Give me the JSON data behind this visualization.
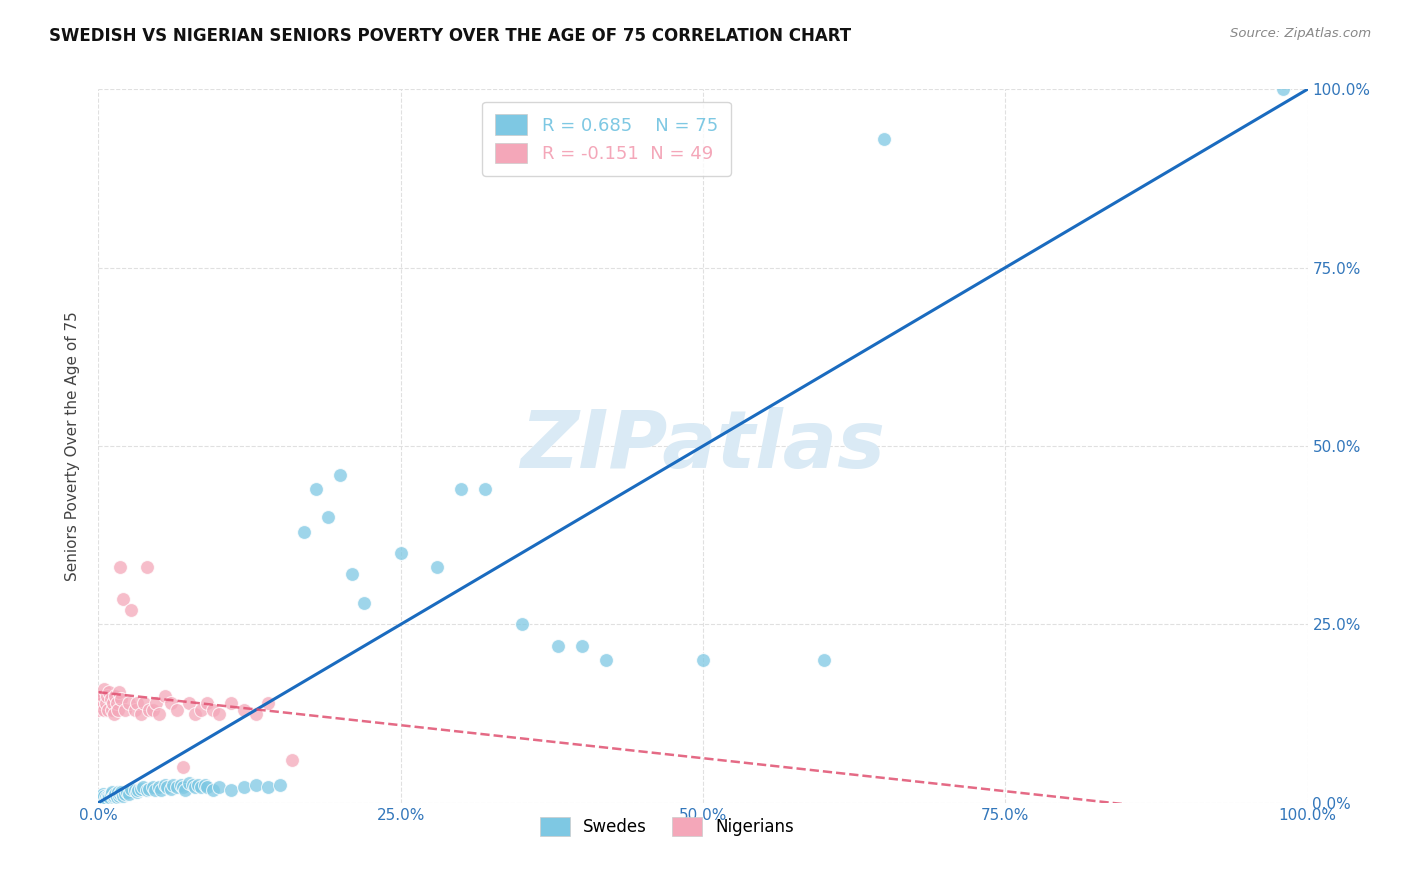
{
  "title": "SWEDISH VS NIGERIAN SENIORS POVERTY OVER THE AGE OF 75 CORRELATION CHART",
  "source": "Source: ZipAtlas.com",
  "ylabel": "Seniors Poverty Over the Age of 75",
  "bg_color": "#ffffff",
  "grid_color": "#e0e0e0",
  "r_swedish": 0.685,
  "n_swedish": 75,
  "r_nigerian": -0.151,
  "n_nigerian": 49,
  "swedish_color": "#7ec8e3",
  "nigerian_color": "#f4a7b9",
  "swedish_line_color": "#1a6bbf",
  "nigerian_line_color": "#e05070",
  "watermark": "ZIPatlas",
  "watermark_color": "#daeaf5",
  "swedish_line": [
    [
      0.0,
      0.0
    ],
    [
      1.0,
      1.0
    ]
  ],
  "nigerian_line": [
    [
      0.0,
      0.155
    ],
    [
      1.0,
      -0.03
    ]
  ],
  "swedish_dots": [
    [
      0.001,
      0.01
    ],
    [
      0.002,
      0.01
    ],
    [
      0.003,
      0.008
    ],
    [
      0.004,
      0.012
    ],
    [
      0.005,
      0.01
    ],
    [
      0.006,
      0.008
    ],
    [
      0.007,
      0.005
    ],
    [
      0.008,
      0.01
    ],
    [
      0.009,
      0.008
    ],
    [
      0.01,
      0.012
    ],
    [
      0.011,
      0.015
    ],
    [
      0.012,
      0.008
    ],
    [
      0.013,
      0.01
    ],
    [
      0.014,
      0.012
    ],
    [
      0.015,
      0.008
    ],
    [
      0.016,
      0.015
    ],
    [
      0.017,
      0.01
    ],
    [
      0.018,
      0.012
    ],
    [
      0.019,
      0.015
    ],
    [
      0.02,
      0.01
    ],
    [
      0.022,
      0.012
    ],
    [
      0.024,
      0.015
    ],
    [
      0.025,
      0.012
    ],
    [
      0.027,
      0.02
    ],
    [
      0.03,
      0.018
    ],
    [
      0.032,
      0.015
    ],
    [
      0.033,
      0.018
    ],
    [
      0.035,
      0.02
    ],
    [
      0.037,
      0.022
    ],
    [
      0.04,
      0.018
    ],
    [
      0.042,
      0.02
    ],
    [
      0.045,
      0.022
    ],
    [
      0.047,
      0.018
    ],
    [
      0.05,
      0.022
    ],
    [
      0.052,
      0.018
    ],
    [
      0.055,
      0.025
    ],
    [
      0.057,
      0.022
    ],
    [
      0.06,
      0.02
    ],
    [
      0.062,
      0.025
    ],
    [
      0.065,
      0.022
    ],
    [
      0.068,
      0.025
    ],
    [
      0.07,
      0.022
    ],
    [
      0.072,
      0.018
    ],
    [
      0.075,
      0.028
    ],
    [
      0.078,
      0.025
    ],
    [
      0.08,
      0.022
    ],
    [
      0.082,
      0.025
    ],
    [
      0.085,
      0.022
    ],
    [
      0.088,
      0.025
    ],
    [
      0.09,
      0.022
    ],
    [
      0.095,
      0.018
    ],
    [
      0.1,
      0.022
    ],
    [
      0.11,
      0.018
    ],
    [
      0.12,
      0.022
    ],
    [
      0.13,
      0.025
    ],
    [
      0.14,
      0.022
    ],
    [
      0.15,
      0.025
    ],
    [
      0.17,
      0.38
    ],
    [
      0.18,
      0.44
    ],
    [
      0.19,
      0.4
    ],
    [
      0.2,
      0.46
    ],
    [
      0.21,
      0.32
    ],
    [
      0.22,
      0.28
    ],
    [
      0.25,
      0.35
    ],
    [
      0.28,
      0.33
    ],
    [
      0.3,
      0.44
    ],
    [
      0.32,
      0.44
    ],
    [
      0.35,
      0.25
    ],
    [
      0.38,
      0.22
    ],
    [
      0.4,
      0.22
    ],
    [
      0.42,
      0.2
    ],
    [
      0.5,
      0.2
    ],
    [
      0.6,
      0.2
    ],
    [
      0.65,
      0.93
    ],
    [
      0.98,
      1.0
    ]
  ],
  "nigerian_dots": [
    [
      0.0,
      0.13
    ],
    [
      0.001,
      0.14
    ],
    [
      0.002,
      0.15
    ],
    [
      0.003,
      0.14
    ],
    [
      0.004,
      0.15
    ],
    [
      0.005,
      0.13
    ],
    [
      0.005,
      0.16
    ],
    [
      0.006,
      0.14
    ],
    [
      0.007,
      0.15
    ],
    [
      0.008,
      0.13
    ],
    [
      0.009,
      0.155
    ],
    [
      0.01,
      0.145
    ],
    [
      0.011,
      0.13
    ],
    [
      0.012,
      0.14
    ],
    [
      0.013,
      0.125
    ],
    [
      0.014,
      0.15
    ],
    [
      0.015,
      0.14
    ],
    [
      0.016,
      0.13
    ],
    [
      0.017,
      0.155
    ],
    [
      0.018,
      0.33
    ],
    [
      0.019,
      0.145
    ],
    [
      0.02,
      0.285
    ],
    [
      0.022,
      0.13
    ],
    [
      0.025,
      0.14
    ],
    [
      0.027,
      0.27
    ],
    [
      0.03,
      0.13
    ],
    [
      0.032,
      0.14
    ],
    [
      0.035,
      0.125
    ],
    [
      0.038,
      0.14
    ],
    [
      0.04,
      0.33
    ],
    [
      0.042,
      0.13
    ],
    [
      0.045,
      0.13
    ],
    [
      0.048,
      0.14
    ],
    [
      0.05,
      0.125
    ],
    [
      0.055,
      0.15
    ],
    [
      0.06,
      0.14
    ],
    [
      0.065,
      0.13
    ],
    [
      0.07,
      0.05
    ],
    [
      0.075,
      0.14
    ],
    [
      0.08,
      0.125
    ],
    [
      0.085,
      0.13
    ],
    [
      0.09,
      0.14
    ],
    [
      0.095,
      0.13
    ],
    [
      0.1,
      0.125
    ],
    [
      0.11,
      0.14
    ],
    [
      0.12,
      0.13
    ],
    [
      0.13,
      0.125
    ],
    [
      0.14,
      0.14
    ],
    [
      0.16,
      0.06
    ]
  ],
  "xlim": [
    0.0,
    1.0
  ],
  "ylim": [
    0.0,
    1.0
  ],
  "xticks": [
    0.0,
    0.25,
    0.5,
    0.75,
    1.0
  ],
  "xtick_labels": [
    "0.0%",
    "25.0%",
    "50.0%",
    "75.0%",
    "100.0%"
  ],
  "yticks": [
    0.0,
    0.25,
    0.5,
    0.75,
    1.0
  ],
  "ytick_labels": [
    "0.0%",
    "25.0%",
    "50.0%",
    "75.0%",
    "100.0%"
  ]
}
